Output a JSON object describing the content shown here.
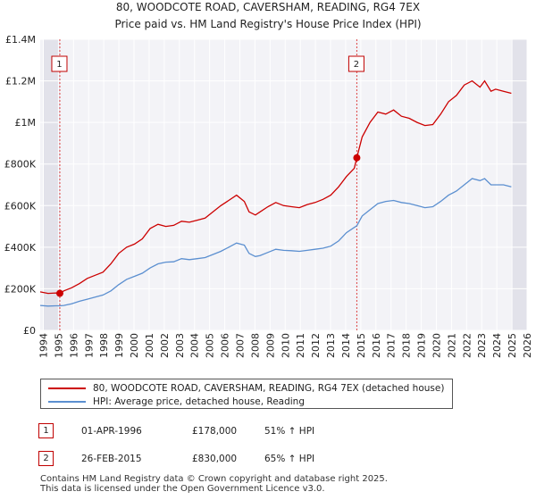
{
  "chart_data": {
    "type": "line",
    "title": "80, WOODCOTE ROAD, CAVERSHAM, READING, RG4 7EX",
    "subtitle": "Price paid vs. HM Land Registry's House Price Index (HPI)",
    "xlabel": "",
    "ylabel": "",
    "xlim": [
      1995.0,
      2026.0
    ],
    "ylim": [
      0,
      1400000
    ],
    "x_ticks": [
      "1994",
      "1995",
      "1996",
      "1997",
      "1998",
      "1999",
      "2000",
      "2001",
      "2002",
      "2003",
      "2004",
      "2005",
      "2006",
      "2007",
      "2008",
      "2009",
      "2010",
      "2011",
      "2012",
      "2013",
      "2014",
      "2015",
      "2016",
      "2017",
      "2018",
      "2019",
      "2020",
      "2021",
      "2022",
      "2023",
      "2024",
      "2025",
      "2026"
    ],
    "y_ticks": [
      {
        "value": 0,
        "label": "£0"
      },
      {
        "value": 200000,
        "label": "£200K"
      },
      {
        "value": 400000,
        "label": "£400K"
      },
      {
        "value": 600000,
        "label": "£600K"
      },
      {
        "value": 800000,
        "label": "£800K"
      },
      {
        "value": 1000000,
        "label": "£1M"
      },
      {
        "value": 1200000,
        "label": "£1.2M"
      },
      {
        "value": 1400000,
        "label": "£1.4M"
      }
    ],
    "series": [
      {
        "name": "80, WOODCOTE ROAD, CAVERSHAM, READING, RG4 7EX (detached house)",
        "color": "#cc0000",
        "x": [
          1995.0,
          1995.5,
          1996.0,
          1996.25,
          1996.5,
          1997.0,
          1997.5,
          1998.0,
          1998.5,
          1999.0,
          1999.5,
          2000.0,
          2000.5,
          2001.0,
          2001.5,
          2002.0,
          2002.5,
          2003.0,
          2003.5,
          2004.0,
          2004.5,
          2005.0,
          2005.5,
          2006.0,
          2006.5,
          2007.0,
          2007.5,
          2008.0,
          2008.3,
          2008.7,
          2009.0,
          2009.5,
          2010.0,
          2010.5,
          2011.0,
          2011.5,
          2012.0,
          2012.5,
          2013.0,
          2013.5,
          2014.0,
          2014.5,
          2015.0,
          2015.16,
          2015.5,
          2016.0,
          2016.5,
          2017.0,
          2017.5,
          2018.0,
          2018.5,
          2019.0,
          2019.5,
          2020.0,
          2020.5,
          2021.0,
          2021.5,
          2022.0,
          2022.5,
          2023.0,
          2023.3,
          2023.7,
          2024.0,
          2024.5,
          2025.0
        ],
        "values": [
          185000,
          178000,
          180000,
          178000,
          190000,
          205000,
          225000,
          250000,
          265000,
          280000,
          320000,
          370000,
          400000,
          415000,
          440000,
          490000,
          510000,
          500000,
          505000,
          525000,
          520000,
          530000,
          540000,
          570000,
          600000,
          625000,
          650000,
          620000,
          570000,
          555000,
          570000,
          595000,
          615000,
          600000,
          595000,
          590000,
          605000,
          615000,
          630000,
          650000,
          690000,
          740000,
          780000,
          830000,
          930000,
          1000000,
          1050000,
          1040000,
          1060000,
          1030000,
          1020000,
          1000000,
          985000,
          990000,
          1040000,
          1100000,
          1130000,
          1180000,
          1200000,
          1170000,
          1200000,
          1150000,
          1160000,
          1150000,
          1140000
        ]
      },
      {
        "name": "HPI: Average price, detached house, Reading",
        "color": "#5b8fd0",
        "x": [
          1995.0,
          1995.5,
          1996.0,
          1996.25,
          1996.5,
          1997.0,
          1997.5,
          1998.0,
          1998.5,
          1999.0,
          1999.5,
          2000.0,
          2000.5,
          2001.0,
          2001.5,
          2002.0,
          2002.5,
          2003.0,
          2003.5,
          2004.0,
          2004.5,
          2005.0,
          2005.5,
          2006.0,
          2006.5,
          2007.0,
          2007.5,
          2008.0,
          2008.3,
          2008.7,
          2009.0,
          2009.5,
          2010.0,
          2010.5,
          2011.0,
          2011.5,
          2012.0,
          2012.5,
          2013.0,
          2013.5,
          2014.0,
          2014.5,
          2015.0,
          2015.16,
          2015.5,
          2016.0,
          2016.5,
          2017.0,
          2017.5,
          2018.0,
          2018.5,
          2019.0,
          2019.5,
          2020.0,
          2020.5,
          2021.0,
          2021.5,
          2022.0,
          2022.5,
          2023.0,
          2023.3,
          2023.7,
          2024.0,
          2024.5,
          2025.0
        ],
        "values": [
          120000,
          117000,
          118000,
          118000,
          120000,
          128000,
          140000,
          150000,
          160000,
          170000,
          190000,
          220000,
          245000,
          260000,
          275000,
          300000,
          320000,
          328000,
          330000,
          345000,
          340000,
          345000,
          350000,
          365000,
          380000,
          400000,
          420000,
          410000,
          370000,
          355000,
          360000,
          375000,
          390000,
          385000,
          383000,
          380000,
          385000,
          390000,
          395000,
          405000,
          430000,
          470000,
          495000,
          503000,
          550000,
          580000,
          610000,
          620000,
          625000,
          615000,
          610000,
          600000,
          590000,
          595000,
          620000,
          650000,
          670000,
          700000,
          730000,
          720000,
          730000,
          700000,
          700000,
          700000,
          690000
        ]
      }
    ],
    "markers": [
      {
        "id": "1",
        "x": 1996.25,
        "value": 178000
      },
      {
        "id": "2",
        "x": 2015.16,
        "value": 830000
      }
    ]
  },
  "legend": {
    "property_label": "80, WOODCOTE ROAD, CAVERSHAM, READING, RG4 7EX (detached house)",
    "hpi_label": "HPI: Average price, detached house, Reading"
  },
  "transactions": [
    {
      "id": "1",
      "date": "01-APR-1996",
      "price": "£178,000",
      "hpi": "51% ↑ HPI"
    },
    {
      "id": "2",
      "date": "26-FEB-2015",
      "price": "£830,000",
      "hpi": "65% ↑ HPI"
    }
  ],
  "footer": {
    "line1": "Contains HM Land Registry data © Crown copyright and database right 2025.",
    "line2": "This data is licensed under the Open Government Licence v3.0."
  }
}
